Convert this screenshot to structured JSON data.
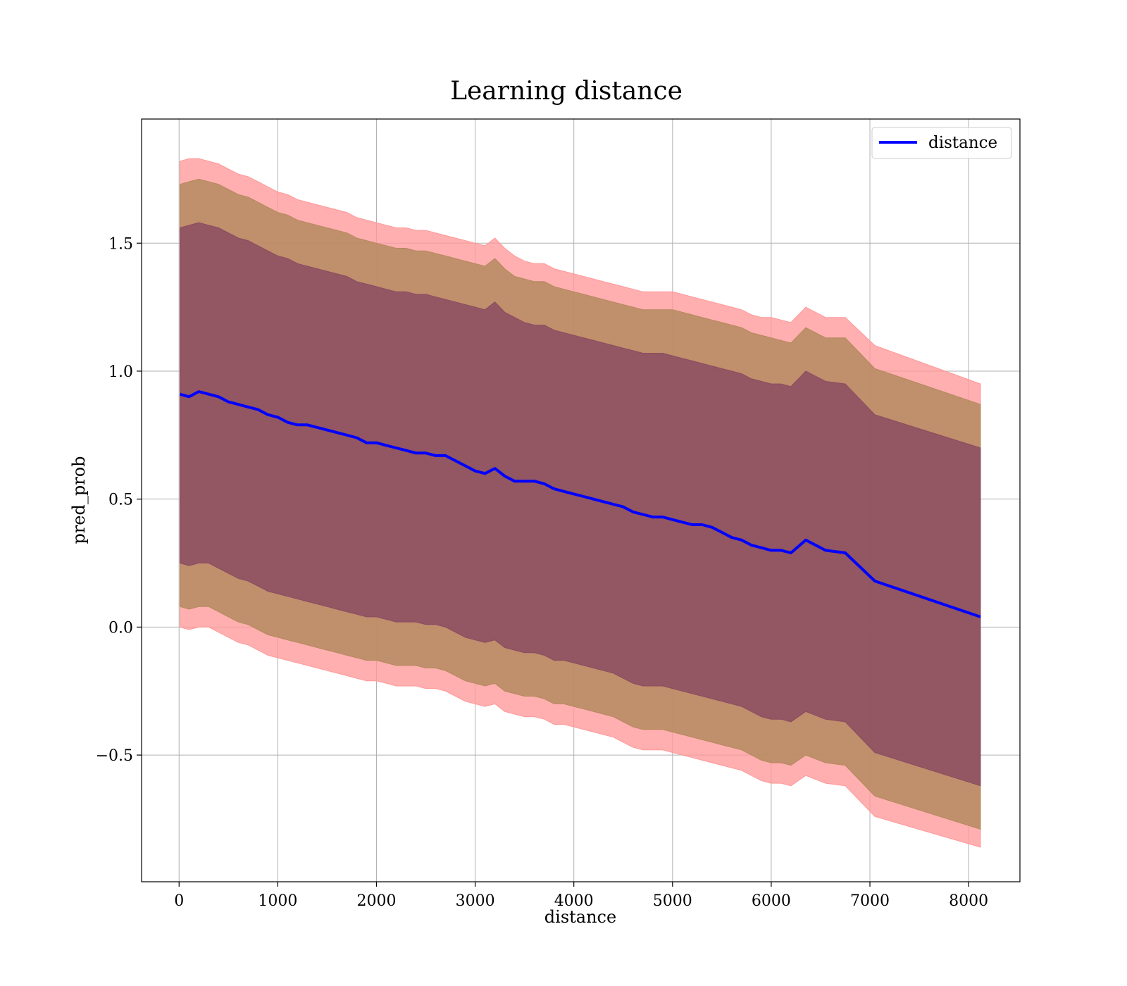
{
  "chart_data": {
    "type": "line",
    "title": "Learning distance",
    "xlabel": "distance",
    "ylabel": "pred_prob",
    "xlim": [
      -380,
      8520
    ],
    "ylim": [
      -0.995,
      1.985
    ],
    "xticks": [
      0,
      1000,
      2000,
      3000,
      4000,
      5000,
      6000,
      7000,
      8000
    ],
    "xtick_labels": [
      "0",
      "1000",
      "2000",
      "3000",
      "4000",
      "5000",
      "6000",
      "7000",
      "8000"
    ],
    "yticks": [
      -0.5,
      0.0,
      0.5,
      1.0,
      1.5
    ],
    "ytick_labels": [
      "−0.5",
      "0.0",
      "0.5",
      "1.0",
      "1.5"
    ],
    "grid": true,
    "legend": {
      "position": "top-right",
      "entries": [
        "distance"
      ]
    },
    "colors": {
      "line": "#0000ff",
      "band_outer": "#ff9999",
      "band_middle": "#b5895f",
      "band_inner": "#8b4c62",
      "grid": "#b0b0b0"
    },
    "x": [
      10,
      100,
      200,
      300,
      400,
      500,
      600,
      700,
      800,
      900,
      1000,
      1100,
      1200,
      1300,
      1400,
      1500,
      1600,
      1700,
      1800,
      1900,
      2000,
      2100,
      2200,
      2300,
      2400,
      2500,
      2600,
      2700,
      2800,
      2900,
      3000,
      3100,
      3200,
      3300,
      3400,
      3500,
      3600,
      3700,
      3800,
      3900,
      4000,
      4100,
      4200,
      4300,
      4400,
      4500,
      4600,
      4700,
      4800,
      4900,
      5000,
      5100,
      5200,
      5300,
      5400,
      5500,
      5600,
      5700,
      5800,
      5900,
      6000,
      6100,
      6200,
      6350,
      6550,
      6750,
      7050,
      8120
    ],
    "series": [
      {
        "name": "distance",
        "values": [
          0.91,
          0.9,
          0.92,
          0.91,
          0.9,
          0.88,
          0.87,
          0.86,
          0.85,
          0.83,
          0.82,
          0.8,
          0.79,
          0.79,
          0.78,
          0.77,
          0.76,
          0.75,
          0.74,
          0.72,
          0.72,
          0.71,
          0.7,
          0.69,
          0.68,
          0.68,
          0.67,
          0.67,
          0.65,
          0.63,
          0.61,
          0.6,
          0.62,
          0.59,
          0.57,
          0.57,
          0.57,
          0.56,
          0.54,
          0.53,
          0.52,
          0.51,
          0.5,
          0.49,
          0.48,
          0.47,
          0.45,
          0.44,
          0.43,
          0.43,
          0.42,
          0.41,
          0.4,
          0.4,
          0.39,
          0.37,
          0.35,
          0.34,
          0.32,
          0.31,
          0.3,
          0.3,
          0.29,
          0.34,
          0.3,
          0.29,
          0.18,
          0.04
        ]
      }
    ],
    "bands": [
      {
        "color": "#ff9999",
        "upper": [
          1.82,
          1.83,
          1.83,
          1.82,
          1.81,
          1.79,
          1.77,
          1.76,
          1.74,
          1.72,
          1.7,
          1.69,
          1.67,
          1.66,
          1.65,
          1.64,
          1.63,
          1.62,
          1.6,
          1.59,
          1.58,
          1.57,
          1.56,
          1.56,
          1.55,
          1.55,
          1.54,
          1.53,
          1.52,
          1.51,
          1.5,
          1.49,
          1.52,
          1.48,
          1.45,
          1.43,
          1.42,
          1.42,
          1.4,
          1.39,
          1.38,
          1.37,
          1.36,
          1.35,
          1.34,
          1.33,
          1.32,
          1.31,
          1.31,
          1.31,
          1.31,
          1.3,
          1.29,
          1.28,
          1.27,
          1.26,
          1.25,
          1.24,
          1.22,
          1.21,
          1.21,
          1.2,
          1.19,
          1.25,
          1.21,
          1.21,
          1.1,
          0.95
        ],
        "lower": [
          0.0,
          -0.01,
          0.0,
          0.0,
          -0.02,
          -0.04,
          -0.06,
          -0.07,
          -0.09,
          -0.11,
          -0.12,
          -0.13,
          -0.14,
          -0.15,
          -0.16,
          -0.17,
          -0.18,
          -0.19,
          -0.2,
          -0.21,
          -0.21,
          -0.22,
          -0.23,
          -0.23,
          -0.23,
          -0.24,
          -0.24,
          -0.25,
          -0.27,
          -0.29,
          -0.3,
          -0.31,
          -0.3,
          -0.33,
          -0.34,
          -0.35,
          -0.35,
          -0.36,
          -0.38,
          -0.38,
          -0.39,
          -0.4,
          -0.41,
          -0.42,
          -0.43,
          -0.45,
          -0.47,
          -0.48,
          -0.48,
          -0.48,
          -0.49,
          -0.5,
          -0.51,
          -0.52,
          -0.53,
          -0.54,
          -0.55,
          -0.56,
          -0.58,
          -0.6,
          -0.61,
          -0.61,
          -0.62,
          -0.58,
          -0.61,
          -0.62,
          -0.74,
          -0.86
        ]
      },
      {
        "color": "#b5895f",
        "upper": [
          1.73,
          1.74,
          1.75,
          1.74,
          1.73,
          1.71,
          1.69,
          1.68,
          1.66,
          1.64,
          1.62,
          1.61,
          1.59,
          1.58,
          1.57,
          1.56,
          1.55,
          1.54,
          1.52,
          1.51,
          1.5,
          1.49,
          1.48,
          1.48,
          1.47,
          1.47,
          1.46,
          1.45,
          1.44,
          1.43,
          1.42,
          1.41,
          1.44,
          1.4,
          1.37,
          1.36,
          1.35,
          1.35,
          1.33,
          1.32,
          1.31,
          1.3,
          1.29,
          1.28,
          1.27,
          1.26,
          1.25,
          1.24,
          1.24,
          1.24,
          1.24,
          1.23,
          1.22,
          1.21,
          1.2,
          1.19,
          1.18,
          1.17,
          1.15,
          1.14,
          1.13,
          1.12,
          1.11,
          1.17,
          1.13,
          1.13,
          1.01,
          0.87
        ],
        "lower": [
          0.08,
          0.07,
          0.08,
          0.08,
          0.06,
          0.04,
          0.02,
          0.01,
          -0.01,
          -0.03,
          -0.04,
          -0.05,
          -0.06,
          -0.07,
          -0.08,
          -0.09,
          -0.1,
          -0.11,
          -0.12,
          -0.13,
          -0.13,
          -0.14,
          -0.15,
          -0.15,
          -0.15,
          -0.16,
          -0.16,
          -0.17,
          -0.19,
          -0.21,
          -0.22,
          -0.23,
          -0.22,
          -0.25,
          -0.26,
          -0.27,
          -0.27,
          -0.28,
          -0.3,
          -0.3,
          -0.31,
          -0.32,
          -0.33,
          -0.34,
          -0.35,
          -0.37,
          -0.39,
          -0.4,
          -0.4,
          -0.4,
          -0.41,
          -0.42,
          -0.43,
          -0.44,
          -0.45,
          -0.46,
          -0.47,
          -0.48,
          -0.5,
          -0.52,
          -0.53,
          -0.53,
          -0.54,
          -0.5,
          -0.53,
          -0.54,
          -0.66,
          -0.79
        ]
      },
      {
        "color": "#8b4c62",
        "upper": [
          1.56,
          1.57,
          1.58,
          1.57,
          1.56,
          1.54,
          1.52,
          1.51,
          1.49,
          1.47,
          1.45,
          1.44,
          1.42,
          1.41,
          1.4,
          1.39,
          1.38,
          1.37,
          1.35,
          1.34,
          1.33,
          1.32,
          1.31,
          1.31,
          1.3,
          1.3,
          1.29,
          1.28,
          1.27,
          1.26,
          1.25,
          1.24,
          1.27,
          1.23,
          1.21,
          1.19,
          1.18,
          1.18,
          1.16,
          1.15,
          1.14,
          1.13,
          1.12,
          1.11,
          1.1,
          1.09,
          1.08,
          1.07,
          1.07,
          1.07,
          1.06,
          1.05,
          1.04,
          1.03,
          1.02,
          1.01,
          1.0,
          0.99,
          0.97,
          0.96,
          0.95,
          0.95,
          0.94,
          1.0,
          0.96,
          0.95,
          0.83,
          0.7
        ],
        "lower": [
          0.25,
          0.24,
          0.25,
          0.25,
          0.23,
          0.21,
          0.19,
          0.18,
          0.16,
          0.14,
          0.13,
          0.12,
          0.11,
          0.1,
          0.09,
          0.08,
          0.07,
          0.06,
          0.05,
          0.04,
          0.04,
          0.03,
          0.02,
          0.02,
          0.02,
          0.01,
          0.01,
          0.0,
          -0.02,
          -0.04,
          -0.05,
          -0.06,
          -0.05,
          -0.08,
          -0.09,
          -0.1,
          -0.1,
          -0.11,
          -0.13,
          -0.13,
          -0.14,
          -0.15,
          -0.16,
          -0.17,
          -0.18,
          -0.2,
          -0.22,
          -0.23,
          -0.23,
          -0.23,
          -0.24,
          -0.25,
          -0.26,
          -0.27,
          -0.28,
          -0.29,
          -0.3,
          -0.31,
          -0.33,
          -0.35,
          -0.36,
          -0.36,
          -0.37,
          -0.33,
          -0.36,
          -0.37,
          -0.49,
          -0.62
        ]
      }
    ]
  }
}
